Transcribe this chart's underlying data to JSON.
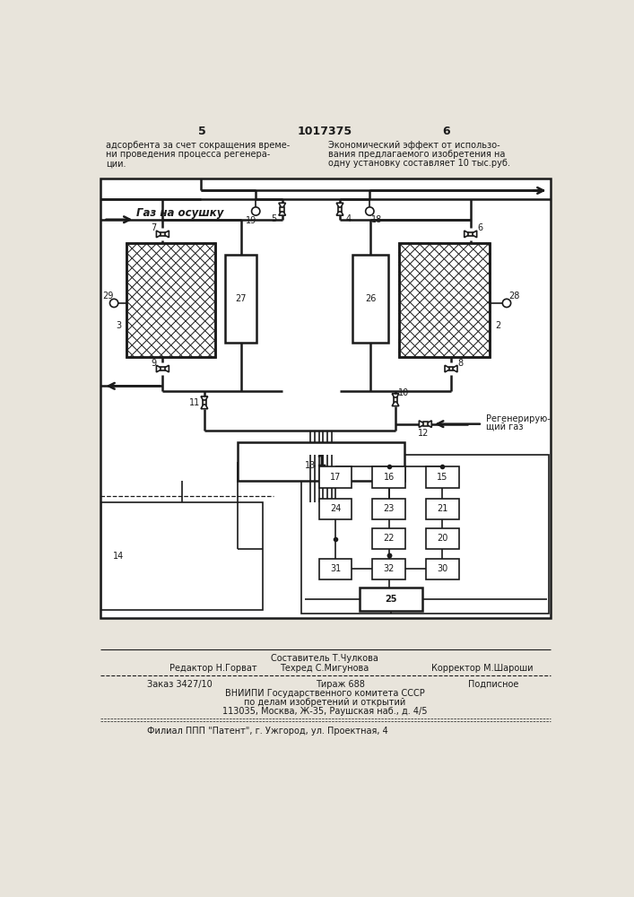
{
  "bg_color": "#e8e4db",
  "diagram_bg": "#ffffff",
  "lc": "#1a1a1a",
  "page_num_left": "5",
  "patent_num": "1017375",
  "page_num_right": "6",
  "header_left": [
    "адсорбента за счет сокращения време-",
    "ни проведения процесса регенера-",
    "ции."
  ],
  "header_right": [
    "Экономический эффект от использо-",
    "вания предлагаемого изобретения на",
    "одну установку составляет 10 тыс.руб."
  ],
  "gas_in_label": "Газ на осушку",
  "regen_gas_1": "Регенерирую-",
  "regen_gas_2": "щий газ",
  "footer_composer": "Составитель Т.Чулкова",
  "footer_editor": "Редактор Н.Горват",
  "footer_tech": "Техред С.Мигунова",
  "footer_corrector": "Корректор М.Шароши",
  "footer_order": "Заказ 3427/10",
  "footer_edition": "Тираж 688",
  "footer_sign": "Подписное",
  "footer_org": "ВНИИПИ Государственного комитета СССР",
  "footer_dept": "по делам изобретений и открытий",
  "footer_addr": "113035, Москва, Ж-35, Раушская наб., д. 4/5",
  "footer_branch": "Филиал ПΠΠ \"Патент\", г. Ужгород, ул. Проектная, 4"
}
